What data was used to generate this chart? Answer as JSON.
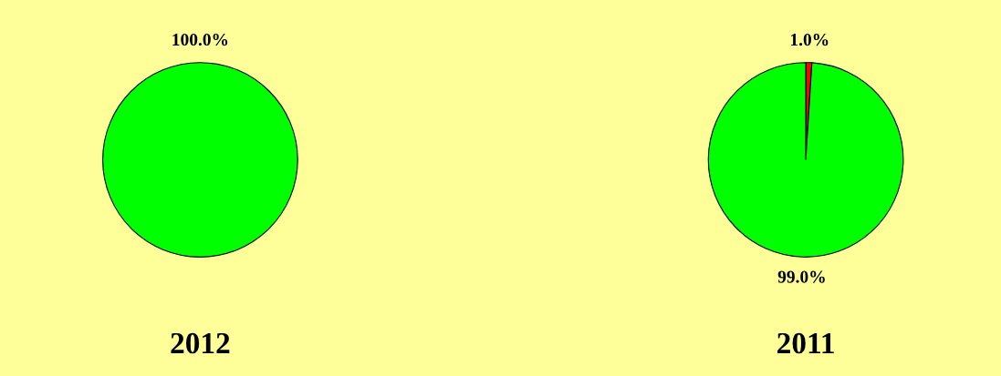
{
  "chart_data": [
    {
      "type": "pie",
      "title": "2012",
      "categories": [
        null
      ],
      "values": [
        100
      ],
      "colors": [
        "#00ff00"
      ],
      "value_labels": [
        "100.0%"
      ]
    },
    {
      "type": "pie",
      "title": "2011",
      "categories": [
        null,
        null
      ],
      "values": [
        1,
        99
      ],
      "colors": [
        "#ff0000",
        "#00ff00"
      ],
      "value_labels": [
        "1.0%",
        "99.0%"
      ]
    }
  ]
}
